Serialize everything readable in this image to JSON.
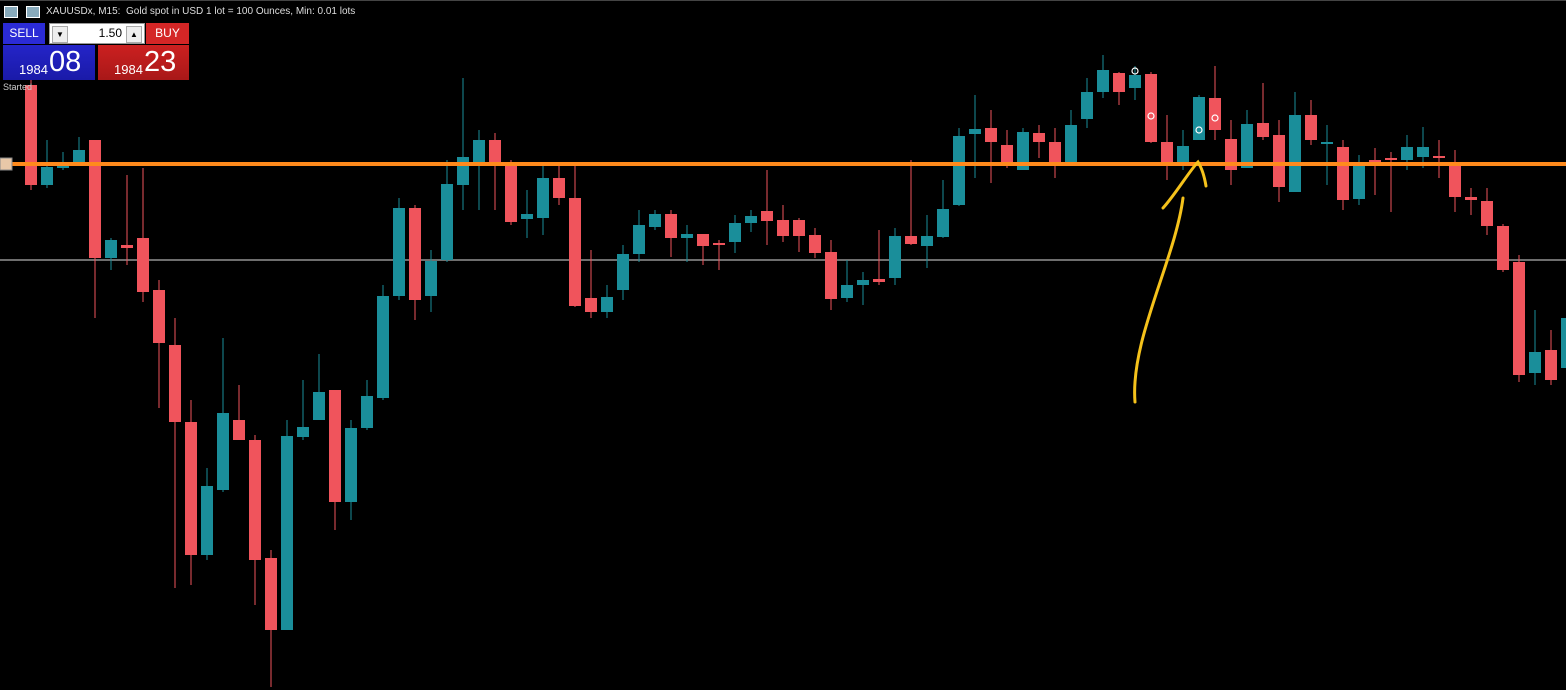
{
  "header": {
    "title": "XAUUSDx, M15:  Gold spot in USD 1 lot = 100 Ounces, Min: 0.01 lots"
  },
  "trade_panel": {
    "sell_label": "SELL",
    "volume": "1.50",
    "buy_label": "BUY",
    "bid_big": "1984",
    "bid_small": "08",
    "ask_big": "1984",
    "ask_small": "23"
  },
  "status": "Started"
}
